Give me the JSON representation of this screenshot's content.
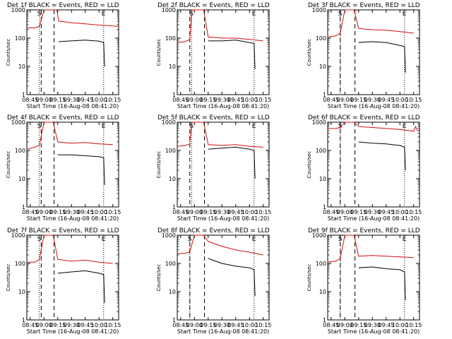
{
  "colors": {
    "events": "#000000",
    "lld": "#d01010",
    "markers": "#000000",
    "frame": "#000000"
  },
  "common": {
    "xlabel": "Start Time (16-Aug-08 08:41:20)",
    "ylabel": "Counts/sec",
    "x_ticks": [
      "08:45",
      "09:00",
      "09:15",
      "09:30",
      "09:45",
      "10:00",
      "10:15"
    ],
    "y_ticks": [
      "1",
      "10",
      "100",
      "1000"
    ],
    "xlim": [
      "08:41:20",
      "10:21:20"
    ],
    "ylim": [
      1,
      1000
    ],
    "y_scale": "log",
    "marker_labels": {
      "S": "S",
      "E": "E"
    }
  },
  "chart_data": [
    {
      "type": "line",
      "title": "Det 1f BLACK = Events, RED = LLD",
      "markers": {
        "S_time": "08:55",
        "E_time": "10:05",
        "dash1_time": "08:57",
        "dash2_time": "09:11"
      },
      "series": [
        {
          "name": "Events",
          "color": "#000000",
          "x": [
            "08:58",
            "09:00",
            "09:14",
            "09:16",
            "09:30",
            "09:45",
            "10:00",
            "10:02",
            "10:05",
            "10:06"
          ],
          "y": [
            null,
            null,
            null,
            75,
            80,
            85,
            78,
            75,
            70,
            10
          ]
        },
        {
          "name": "LLD",
          "color": "#d01010",
          "x": [
            "08:41",
            "08:50",
            "08:55",
            "09:00",
            "09:10",
            "09:14",
            "09:16",
            "09:30",
            "09:45",
            "10:00",
            "10:15",
            "10:21"
          ],
          "y": [
            230,
            230,
            260,
            1000,
            1000,
            1000,
            400,
            350,
            320,
            290,
            270,
            260
          ]
        }
      ]
    },
    {
      "type": "line",
      "title": "Det 2f BLACK = Events, RED = LLD",
      "markers": {
        "S_time": "08:57",
        "E_time": "10:05",
        "dash1_time": "08:55",
        "dash2_time": "09:11"
      },
      "series": [
        {
          "name": "Events",
          "color": "#000000",
          "x": [
            "09:15",
            "09:30",
            "09:45",
            "10:00",
            "10:05",
            "10:06"
          ],
          "y": [
            80,
            80,
            85,
            70,
            65,
            8
          ]
        },
        {
          "name": "LLD",
          "color": "#d01010",
          "x": [
            "08:41",
            "08:50",
            "08:55",
            "08:57",
            "09:10",
            "09:15",
            "09:30",
            "09:45",
            "10:00",
            "10:15"
          ],
          "y": [
            70,
            75,
            90,
            1000,
            1000,
            110,
            100,
            100,
            90,
            80
          ]
        }
      ]
    },
    {
      "type": "line",
      "title": "Det 3f BLACK = Events, RED = LLD",
      "markers": {
        "S_time": "08:55",
        "E_time": "10:05",
        "dash1_time": "08:55",
        "dash2_time": "09:11"
      },
      "series": [
        {
          "name": "Events",
          "color": "#000000",
          "x": [
            "09:15",
            "09:30",
            "09:45",
            "10:00",
            "10:05",
            "10:06"
          ],
          "y": [
            70,
            75,
            70,
            55,
            50,
            6
          ]
        },
        {
          "name": "LLD",
          "color": "#d01010",
          "x": [
            "08:41",
            "08:50",
            "08:55",
            "09:00",
            "09:10",
            "09:15",
            "09:30",
            "09:45",
            "10:00",
            "10:15"
          ],
          "y": [
            110,
            120,
            150,
            1000,
            1000,
            220,
            200,
            190,
            170,
            150
          ]
        }
      ]
    },
    {
      "type": "line",
      "title": "Det 4f BLACK = Events, RED = LLD",
      "markers": {
        "S_time": "08:55",
        "E_time": "10:05",
        "dash1_time": "08:57",
        "dash2_time": "09:11"
      },
      "series": [
        {
          "name": "Events",
          "color": "#000000",
          "x": [
            "09:15",
            "09:30",
            "09:45",
            "10:00",
            "10:05",
            "10:06"
          ],
          "y": [
            70,
            70,
            65,
            60,
            55,
            6
          ]
        },
        {
          "name": "LLD",
          "color": "#d01010",
          "x": [
            "08:41",
            "08:50",
            "08:55",
            "09:00",
            "09:10",
            "09:15",
            "09:30",
            "09:45",
            "10:00",
            "10:15"
          ],
          "y": [
            110,
            130,
            150,
            1000,
            1000,
            200,
            180,
            190,
            170,
            160
          ]
        }
      ]
    },
    {
      "type": "line",
      "title": "Det 5f BLACK = Events, RED = LLD",
      "markers": {
        "S_time": "08:57",
        "E_time": "10:05",
        "dash1_time": "08:55",
        "dash2_time": "09:11"
      },
      "series": [
        {
          "name": "Events",
          "color": "#000000",
          "x": [
            "09:14",
            "09:15",
            "09:30",
            "09:45",
            "10:00",
            "10:05",
            "10:06"
          ],
          "y": [
            null,
            110,
            120,
            130,
            110,
            100,
            10
          ]
        },
        {
          "name": "LLD",
          "color": "#d01010",
          "x": [
            "08:41",
            "08:50",
            "08:55",
            "08:57",
            "09:10",
            "09:15",
            "09:30",
            "09:45",
            "10:00",
            "10:15"
          ],
          "y": [
            140,
            150,
            170,
            1000,
            1000,
            160,
            150,
            160,
            140,
            130
          ]
        }
      ]
    },
    {
      "type": "line",
      "title": "Det 6f BLACK = Events, RED = LLD",
      "markers": {
        "S_time": "08:55",
        "E_time": "10:05",
        "dash1_time": "08:55",
        "dash2_time": "09:11"
      },
      "series": [
        {
          "name": "Events",
          "color": "#000000",
          "x": [
            "09:15",
            "09:30",
            "09:45",
            "10:00",
            "10:05",
            "10:06"
          ],
          "y": [
            200,
            180,
            170,
            150,
            130,
            20
          ]
        },
        {
          "name": "LLD",
          "color": "#d01010",
          "x": [
            "08:41",
            "08:50",
            "08:55",
            "09:00",
            "09:10",
            "09:15",
            "09:30",
            "09:45",
            "10:00",
            "10:15",
            "10:17",
            "10:19"
          ],
          "y": [
            600,
            600,
            650,
            1000,
            1000,
            700,
            650,
            600,
            550,
            480,
            700,
            500
          ]
        }
      ]
    },
    {
      "type": "line",
      "title": "Det 7f BLACK = Events, RED = LLD",
      "markers": {
        "S_time": "08:55",
        "E_time": "10:05",
        "dash1_time": "08:57",
        "dash2_time": "09:11"
      },
      "series": [
        {
          "name": "Events",
          "color": "#000000",
          "x": [
            "09:15",
            "09:30",
            "09:45",
            "10:00",
            "10:05",
            "10:06"
          ],
          "y": [
            45,
            50,
            55,
            45,
            40,
            4
          ]
        },
        {
          "name": "LLD",
          "color": "#d01010",
          "x": [
            "08:41",
            "08:50",
            "08:55",
            "09:00",
            "09:10",
            "09:15",
            "09:30",
            "09:45",
            "10:00",
            "10:15"
          ],
          "y": [
            110,
            110,
            140,
            1000,
            1000,
            140,
            120,
            130,
            110,
            100
          ]
        }
      ]
    },
    {
      "type": "line",
      "title": "Det 8f BLACK = Events, RED = LLD",
      "markers": {
        "S_time": "08:55",
        "E_time": "10:05",
        "dash1_time": "08:55",
        "dash2_time": "09:11"
      },
      "series": [
        {
          "name": "Events",
          "color": "#000000",
          "x": [
            "09:15",
            "09:30",
            "09:45",
            "10:00",
            "10:05",
            "10:06"
          ],
          "y": [
            150,
            100,
            80,
            70,
            60,
            7
          ]
        },
        {
          "name": "LLD",
          "color": "#d01010",
          "x": [
            "08:41",
            "08:50",
            "08:55",
            "09:00",
            "09:10",
            "09:15",
            "09:30",
            "09:45",
            "10:00",
            "10:15"
          ],
          "y": [
            220,
            230,
            260,
            1000,
            1000,
            600,
            400,
            300,
            250,
            200
          ]
        }
      ]
    },
    {
      "type": "line",
      "title": "Det 9f BLACK = Events, RED = LLD",
      "markers": {
        "S_time": "08:55",
        "E_time": "10:05",
        "dash1_time": "08:55",
        "dash2_time": "09:11"
      },
      "series": [
        {
          "name": "Events",
          "color": "#000000",
          "x": [
            "09:15",
            "09:30",
            "09:45",
            "10:00",
            "10:05",
            "10:06"
          ],
          "y": [
            70,
            75,
            65,
            60,
            50,
            5
          ]
        },
        {
          "name": "LLD",
          "color": "#d01010",
          "x": [
            "08:41",
            "08:50",
            "08:55",
            "09:00",
            "09:10",
            "09:15",
            "09:30",
            "09:45",
            "10:00",
            "10:15"
          ],
          "y": [
            110,
            120,
            150,
            1000,
            1000,
            180,
            190,
            180,
            170,
            160
          ]
        }
      ]
    }
  ]
}
